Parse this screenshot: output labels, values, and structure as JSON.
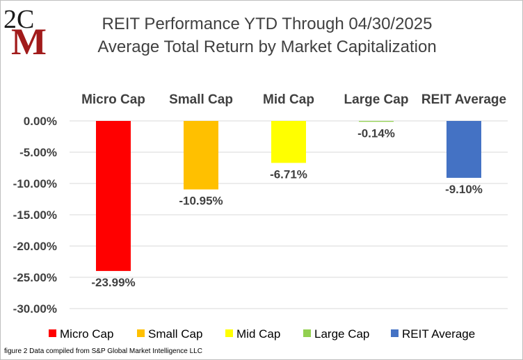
{
  "logo": {
    "top_text": "2C",
    "big_letter": "M",
    "colors": {
      "dark": "#1a1a1a",
      "red": "#a11b1b"
    }
  },
  "chart_data": {
    "type": "bar",
    "title": "REIT Performance YTD Through 04/30/2025",
    "subtitle": "Average Total Return by Market Capitalization",
    "categories": [
      "Micro Cap",
      "Small Cap",
      "Mid Cap",
      "Large Cap",
      "REIT Average"
    ],
    "values": [
      -23.99,
      -10.95,
      -6.71,
      -0.14,
      -9.1
    ],
    "data_labels": [
      "-23.99%",
      "-10.95%",
      "-6.71%",
      "-0.14%",
      "-9.10%"
    ],
    "colors": [
      "#ff0000",
      "#ffc000",
      "#ffff00",
      "#92d050",
      "#4472c4"
    ],
    "ylim": [
      -30,
      0
    ],
    "yticks": [
      0,
      -5,
      -10,
      -15,
      -20,
      -25,
      -30
    ],
    "ytick_labels": [
      "0.00%",
      "-5.00%",
      "-10.00%",
      "-15.00%",
      "-20.00%",
      "-25.00%",
      "-30.00%"
    ],
    "grid": true,
    "legend_position": "bottom",
    "legend": [
      "Micro Cap",
      "Small Cap",
      "Mid Cap",
      "Large Cap",
      "REIT Average"
    ]
  },
  "footnote": "figure 2 Data compiled from S&P Global Market Intelligence LLC"
}
